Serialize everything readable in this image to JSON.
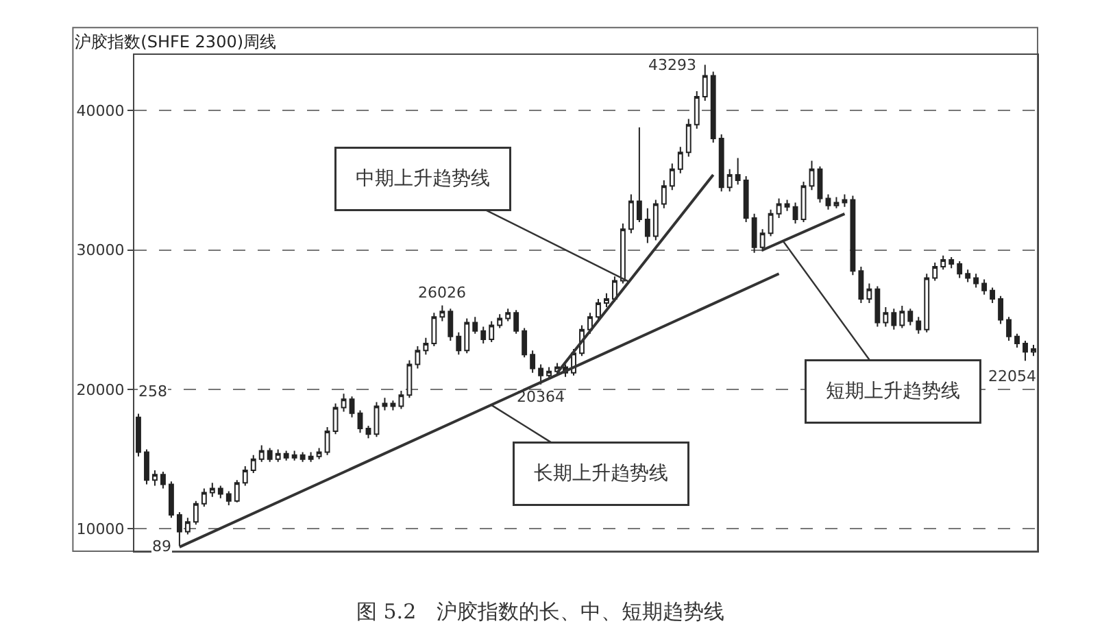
{
  "chart_data": {
    "type": "candlestick",
    "title": "沪胶指数(SHFE 2300)周线",
    "categories": [
      null,
      null,
      null,
      null,
      null,
      null,
      null,
      null,
      null,
      null,
      null,
      null,
      null,
      null,
      null,
      null,
      null,
      null,
      null,
      null,
      null,
      null,
      null,
      null,
      null,
      null,
      null,
      null,
      null,
      null,
      null,
      null,
      null,
      null,
      null,
      null,
      null,
      null,
      null,
      null,
      null,
      null,
      null,
      null,
      null,
      null,
      null,
      null,
      null,
      null,
      null,
      null,
      null,
      null,
      null,
      null,
      null,
      null,
      null,
      null,
      null,
      null,
      null,
      null,
      null,
      null,
      null,
      null,
      null,
      null,
      null,
      null,
      null,
      null,
      null,
      null,
      null,
      null,
      null,
      null,
      null,
      null,
      null,
      null,
      null,
      null,
      null,
      null,
      null,
      null,
      null,
      null,
      null,
      null,
      null,
      null,
      null,
      null,
      null,
      null,
      null,
      null,
      null,
      null,
      null,
      null,
      null,
      null,
      null,
      null
    ],
    "color": "#222222",
    "ohlc": [
      [
        18000,
        18258,
        15200,
        15500
      ],
      [
        15500,
        15700,
        13200,
        13500
      ],
      [
        13500,
        14200,
        13100,
        13900
      ],
      [
        13900,
        14100,
        12900,
        13200
      ],
      [
        13200,
        13400,
        10800,
        11000
      ],
      [
        11000,
        11200,
        8789,
        9800
      ],
      [
        9800,
        10800,
        9600,
        10500
      ],
      [
        10500,
        12000,
        10300,
        11800
      ],
      [
        11800,
        12900,
        11600,
        12600
      ],
      [
        12600,
        13300,
        12300,
        12900
      ],
      [
        12900,
        13100,
        12200,
        12500
      ],
      [
        12500,
        12700,
        11700,
        12000
      ],
      [
        12000,
        13500,
        11900,
        13300
      ],
      [
        13300,
        14500,
        13100,
        14200
      ],
      [
        14200,
        15300,
        14000,
        15000
      ],
      [
        15000,
        16000,
        14800,
        15600
      ],
      [
        15600,
        15800,
        14800,
        15000
      ],
      [
        15000,
        15700,
        14800,
        15400
      ],
      [
        15400,
        15600,
        14900,
        15100
      ],
      [
        15100,
        15600,
        14900,
        15300
      ],
      [
        15300,
        15500,
        14800,
        15000
      ],
      [
        15000,
        15500,
        14800,
        15200
      ],
      [
        15200,
        15800,
        15000,
        15500
      ],
      [
        15500,
        17300,
        15300,
        17000
      ],
      [
        17000,
        19000,
        16800,
        18700
      ],
      [
        18700,
        19700,
        18400,
        19300
      ],
      [
        19300,
        19500,
        18000,
        18300
      ],
      [
        18300,
        18500,
        16900,
        17200
      ],
      [
        17200,
        17400,
        16500,
        16800
      ],
      [
        16800,
        19100,
        16600,
        18800
      ],
      [
        18800,
        19400,
        18500,
        19000
      ],
      [
        19000,
        19200,
        18500,
        18800
      ],
      [
        18800,
        19900,
        18600,
        19600
      ],
      [
        19600,
        22100,
        19400,
        21800
      ],
      [
        21800,
        23100,
        21500,
        22800
      ],
      [
        22800,
        23700,
        22500,
        23300
      ],
      [
        23300,
        25500,
        23100,
        25200
      ],
      [
        25200,
        26026,
        24900,
        25600
      ],
      [
        25600,
        25800,
        23500,
        23800
      ],
      [
        23800,
        24100,
        22500,
        22800
      ],
      [
        22800,
        25100,
        22600,
        24800
      ],
      [
        24800,
        25200,
        24000,
        24200
      ],
      [
        24200,
        24500,
        23300,
        23600
      ],
      [
        23600,
        24900,
        23400,
        24600
      ],
      [
        24600,
        25400,
        24400,
        25100
      ],
      [
        25100,
        25800,
        24900,
        25500
      ],
      [
        25500,
        25700,
        24000,
        24200
      ],
      [
        24200,
        24400,
        22300,
        22500
      ],
      [
        22500,
        22800,
        21200,
        21500
      ],
      [
        21500,
        21800,
        20364,
        21000
      ],
      [
        21000,
        21600,
        20700,
        21300
      ],
      [
        21300,
        21900,
        21000,
        21600
      ],
      [
        21600,
        21800,
        20900,
        21200
      ],
      [
        21200,
        22900,
        21000,
        22600
      ],
      [
        22600,
        24600,
        22400,
        24300
      ],
      [
        24300,
        25500,
        24000,
        25200
      ],
      [
        25200,
        26500,
        25000,
        26200
      ],
      [
        26200,
        26900,
        25900,
        26500
      ],
      [
        26500,
        28100,
        26300,
        27800
      ],
      [
        27800,
        31900,
        27600,
        31500
      ],
      [
        31500,
        34000,
        31200,
        33500
      ],
      [
        33500,
        38800,
        32000,
        32200
      ],
      [
        32200,
        33000,
        30500,
        31000
      ],
      [
        31000,
        33600,
        30700,
        33300
      ],
      [
        33300,
        35000,
        33000,
        34600
      ],
      [
        34600,
        36200,
        34300,
        35800
      ],
      [
        35800,
        37400,
        35500,
        37000
      ],
      [
        37000,
        39400,
        36700,
        39000
      ],
      [
        39000,
        41400,
        38700,
        41000
      ],
      [
        41000,
        43293,
        40700,
        42500
      ],
      [
        42500,
        42800,
        37700,
        38000
      ],
      [
        38000,
        38300,
        34200,
        34500
      ],
      [
        34500,
        35800,
        34200,
        35400
      ],
      [
        35400,
        36600,
        34700,
        35000
      ],
      [
        35000,
        35300,
        32000,
        32300
      ],
      [
        32300,
        32600,
        29800,
        30200
      ],
      [
        30200,
        31500,
        29900,
        31200
      ],
      [
        31200,
        32900,
        31000,
        32600
      ],
      [
        32600,
        33700,
        32300,
        33300
      ],
      [
        33300,
        33600,
        32800,
        33100
      ],
      [
        33100,
        33400,
        31900,
        32200
      ],
      [
        32200,
        34900,
        32000,
        34600
      ],
      [
        34600,
        36400,
        34300,
        35800
      ],
      [
        35800,
        36000,
        33400,
        33700
      ],
      [
        33700,
        34000,
        32900,
        33200
      ],
      [
        33200,
        33800,
        33000,
        33400
      ],
      [
        33400,
        34000,
        33100,
        33600
      ],
      [
        33600,
        33900,
        28200,
        28500
      ],
      [
        28500,
        28800,
        26200,
        26500
      ],
      [
        26500,
        27600,
        26200,
        27200
      ],
      [
        27200,
        27400,
        24500,
        24800
      ],
      [
        24800,
        25900,
        24500,
        25500
      ],
      [
        25500,
        25800,
        24300,
        24600
      ],
      [
        24600,
        26000,
        24400,
        25600
      ],
      [
        25600,
        25800,
        24600,
        24900
      ],
      [
        24900,
        25200,
        24000,
        24300
      ],
      [
        24300,
        28300,
        24100,
        28000
      ],
      [
        28000,
        29100,
        27800,
        28800
      ],
      [
        28800,
        29600,
        28600,
        29300
      ],
      [
        29300,
        29500,
        28700,
        29000
      ],
      [
        29000,
        29200,
        28000,
        28300
      ],
      [
        28300,
        28600,
        27700,
        28000
      ],
      [
        28000,
        28300,
        27300,
        27600
      ],
      [
        27600,
        27900,
        26800,
        27100
      ],
      [
        27100,
        27300,
        26200,
        26500
      ],
      [
        26500,
        26700,
        24700,
        25000
      ],
      [
        25000,
        25200,
        23500,
        23800
      ],
      [
        23800,
        24000,
        23000,
        23300
      ],
      [
        23300,
        23500,
        22054,
        22700
      ],
      [
        22700,
        23200,
        22400,
        22900
      ]
    ],
    "series": [
      {
        "type": "line",
        "color": "#333333",
        "values": [
          null,
          null,
          null,
          null,
          null,
          null,
          null,
          null,
          null,
          null,
          null,
          null,
          null,
          null,
          null,
          null,
          null,
          null,
          null,
          null,
          null,
          null,
          null,
          null,
          null,
          null,
          null,
          null,
          null,
          null,
          null,
          null,
          null,
          null,
          null,
          null,
          null,
          null,
          null,
          null,
          null,
          null,
          null,
          null,
          null,
          null,
          null,
          null,
          null,
          null,
          null,
          21200,
          null,
          null,
          null,
          null,
          null,
          null,
          null,
          null,
          null,
          null,
          null,
          null,
          null,
          null,
          null,
          null,
          null,
          null,
          35400,
          null,
          null,
          null,
          null,
          null,
          null,
          null,
          null,
          null,
          null,
          null,
          null,
          null,
          null,
          null,
          null,
          null,
          null,
          null,
          null,
          null,
          null,
          null,
          null,
          null,
          null,
          null,
          null,
          null,
          null,
          null,
          null,
          null,
          null,
          null,
          null,
          null,
          null,
          null
        ]
      },
      {
        "type": "line",
        "color": "#333333",
        "values": [
          null,
          null,
          null,
          null,
          null,
          8700,
          null,
          null,
          null,
          null,
          null,
          null,
          null,
          null,
          null,
          null,
          null,
          null,
          null,
          null,
          null,
          null,
          null,
          null,
          null,
          null,
          null,
          null,
          null,
          null,
          null,
          null,
          null,
          null,
          null,
          null,
          null,
          null,
          null,
          null,
          null,
          null,
          null,
          null,
          null,
          null,
          null,
          null,
          null,
          null,
          null,
          null,
          null,
          null,
          null,
          null,
          null,
          null,
          null,
          null,
          null,
          null,
          null,
          null,
          null,
          null,
          null,
          null,
          null,
          null,
          null,
          null,
          null,
          null,
          null,
          null,
          null,
          null,
          28300,
          null,
          null,
          null,
          null,
          null,
          null,
          null,
          null,
          null,
          null,
          null,
          null,
          null,
          null,
          null,
          null,
          null,
          null,
          null,
          null,
          null,
          null,
          null,
          null,
          null,
          null,
          null,
          null,
          null,
          null,
          null
        ]
      },
      {
        "type": "line",
        "color": "#333333",
        "values": [
          null,
          null,
          null,
          null,
          null,
          null,
          null,
          null,
          null,
          null,
          null,
          null,
          null,
          null,
          null,
          null,
          null,
          null,
          null,
          null,
          null,
          null,
          null,
          null,
          null,
          null,
          null,
          null,
          null,
          null,
          null,
          null,
          null,
          null,
          null,
          null,
          null,
          null,
          null,
          null,
          null,
          null,
          null,
          null,
          null,
          null,
          null,
          null,
          null,
          null,
          null,
          null,
          null,
          null,
          null,
          null,
          null,
          null,
          null,
          null,
          null,
          null,
          null,
          null,
          null,
          null,
          null,
          null,
          null,
          null,
          null,
          null,
          null,
          null,
          null,
          null,
          30000,
          null,
          null,
          null,
          null,
          null,
          null,
          null,
          null,
          null,
          32600,
          null,
          null,
          null,
          null,
          null,
          null,
          null,
          null,
          null,
          null,
          null,
          null,
          null,
          null,
          null,
          null,
          null,
          null,
          null,
          null,
          null,
          null,
          null
        ]
      }
    ],
    "ylim": [
      8400,
      44000
    ],
    "yticks": [
      10000,
      20000,
      30000,
      40000
    ],
    "tick_labels": "y",
    "grid": "y",
    "line_style": "solid",
    "annotations": [
      "中期上升趋势线",
      "长期上升趋势线",
      "短期上升趋势线",
      "258",
      "22054",
      {
        "text": "89",
        "y": 8789
      },
      {
        "text": "26026",
        "y": 26026
      },
      {
        "text": "20364",
        "y": 20364
      },
      {
        "text": "43293",
        "y": 43293
      },
      "图 5.2　沪胶指数的长、中、短期趋势线"
    ]
  }
}
